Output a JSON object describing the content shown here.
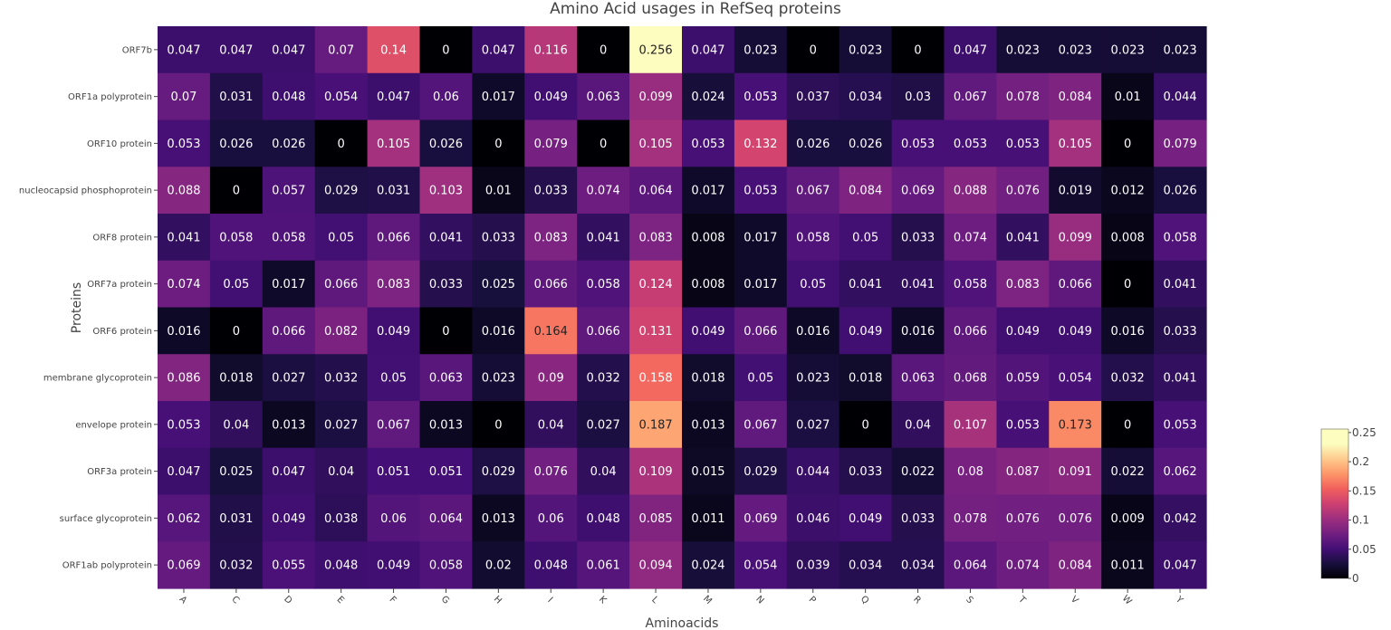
{
  "chart_data": {
    "type": "heatmap",
    "title": "Amino Acid usages in RefSeq proteins",
    "xlabel": "Aminoacids",
    "ylabel": "Proteins",
    "x_categories": [
      "A",
      "C",
      "D",
      "E",
      "F",
      "G",
      "H",
      "I",
      "K",
      "L",
      "M",
      "N",
      "P",
      "Q",
      "R",
      "S",
      "T",
      "V",
      "W",
      "Y"
    ],
    "y_categories": [
      "ORF7b",
      "ORF1a polyprotein",
      "ORF10 protein",
      "nucleocapsid phosphoprotein",
      "ORF8 protein",
      "ORF7a protein",
      "ORF6 protein",
      "membrane glycoprotein",
      "envelope protein",
      "ORF3a protein",
      "surface glycoprotein",
      "ORF1ab polyprotein"
    ],
    "values": [
      [
        0.047,
        0.047,
        0.047,
        0.07,
        0.14,
        0,
        0.047,
        0.116,
        0,
        0.256,
        0.047,
        0.023,
        0,
        0.023,
        0,
        0.047,
        0.023,
        0.023,
        0.023,
        0.023
      ],
      [
        0.07,
        0.031,
        0.048,
        0.054,
        0.047,
        0.06,
        0.017,
        0.049,
        0.063,
        0.099,
        0.024,
        0.053,
        0.037,
        0.034,
        0.03,
        0.067,
        0.078,
        0.084,
        0.01,
        0.044
      ],
      [
        0.053,
        0.026,
        0.026,
        0,
        0.105,
        0.026,
        0,
        0.079,
        0,
        0.105,
        0.053,
        0.132,
        0.026,
        0.026,
        0.053,
        0.053,
        0.053,
        0.105,
        0,
        0.079
      ],
      [
        0.088,
        0,
        0.057,
        0.029,
        0.031,
        0.103,
        0.01,
        0.033,
        0.074,
        0.064,
        0.017,
        0.053,
        0.067,
        0.084,
        0.069,
        0.088,
        0.076,
        0.019,
        0.012,
        0.026
      ],
      [
        0.041,
        0.058,
        0.058,
        0.05,
        0.066,
        0.041,
        0.033,
        0.083,
        0.041,
        0.083,
        0.008,
        0.017,
        0.058,
        0.05,
        0.033,
        0.074,
        0.041,
        0.099,
        0.008,
        0.058
      ],
      [
        0.074,
        0.05,
        0.017,
        0.066,
        0.083,
        0.033,
        0.025,
        0.066,
        0.058,
        0.124,
        0.008,
        0.017,
        0.05,
        0.041,
        0.041,
        0.058,
        0.083,
        0.066,
        0,
        0.041
      ],
      [
        0.016,
        0,
        0.066,
        0.082,
        0.049,
        0,
        0.016,
        0.164,
        0.066,
        0.131,
        0.049,
        0.066,
        0.016,
        0.049,
        0.016,
        0.066,
        0.049,
        0.049,
        0.016,
        0.033
      ],
      [
        0.086,
        0.018,
        0.027,
        0.032,
        0.05,
        0.063,
        0.023,
        0.09,
        0.032,
        0.158,
        0.018,
        0.05,
        0.023,
        0.018,
        0.063,
        0.068,
        0.059,
        0.054,
        0.032,
        0.041
      ],
      [
        0.053,
        0.04,
        0.013,
        0.027,
        0.067,
        0.013,
        0,
        0.04,
        0.027,
        0.187,
        0.013,
        0.067,
        0.027,
        0,
        0.04,
        0.107,
        0.053,
        0.173,
        0,
        0.053
      ],
      [
        0.047,
        0.025,
        0.047,
        0.04,
        0.051,
        0.051,
        0.029,
        0.076,
        0.04,
        0.109,
        0.015,
        0.029,
        0.044,
        0.033,
        0.022,
        0.08,
        0.087,
        0.091,
        0.022,
        0.062
      ],
      [
        0.062,
        0.031,
        0.049,
        0.038,
        0.06,
        0.064,
        0.013,
        0.06,
        0.048,
        0.085,
        0.011,
        0.069,
        0.046,
        0.049,
        0.033,
        0.078,
        0.076,
        0.076,
        0.009,
        0.042
      ],
      [
        0.069,
        0.032,
        0.055,
        0.048,
        0.049,
        0.058,
        0.02,
        0.048,
        0.061,
        0.094,
        0.024,
        0.054,
        0.039,
        0.034,
        0.034,
        0.064,
        0.074,
        0.084,
        0.011,
        0.047
      ]
    ],
    "zmin": 0,
    "zmax": 0.256,
    "colorscale": "magma",
    "colorbar": {
      "tick_values": [
        0,
        0.05,
        0.1,
        0.15,
        0.2,
        0.25
      ],
      "tick_labels": [
        "0",
        "0.05",
        "0.1",
        "0.15",
        "0.2",
        "0.25"
      ]
    }
  }
}
